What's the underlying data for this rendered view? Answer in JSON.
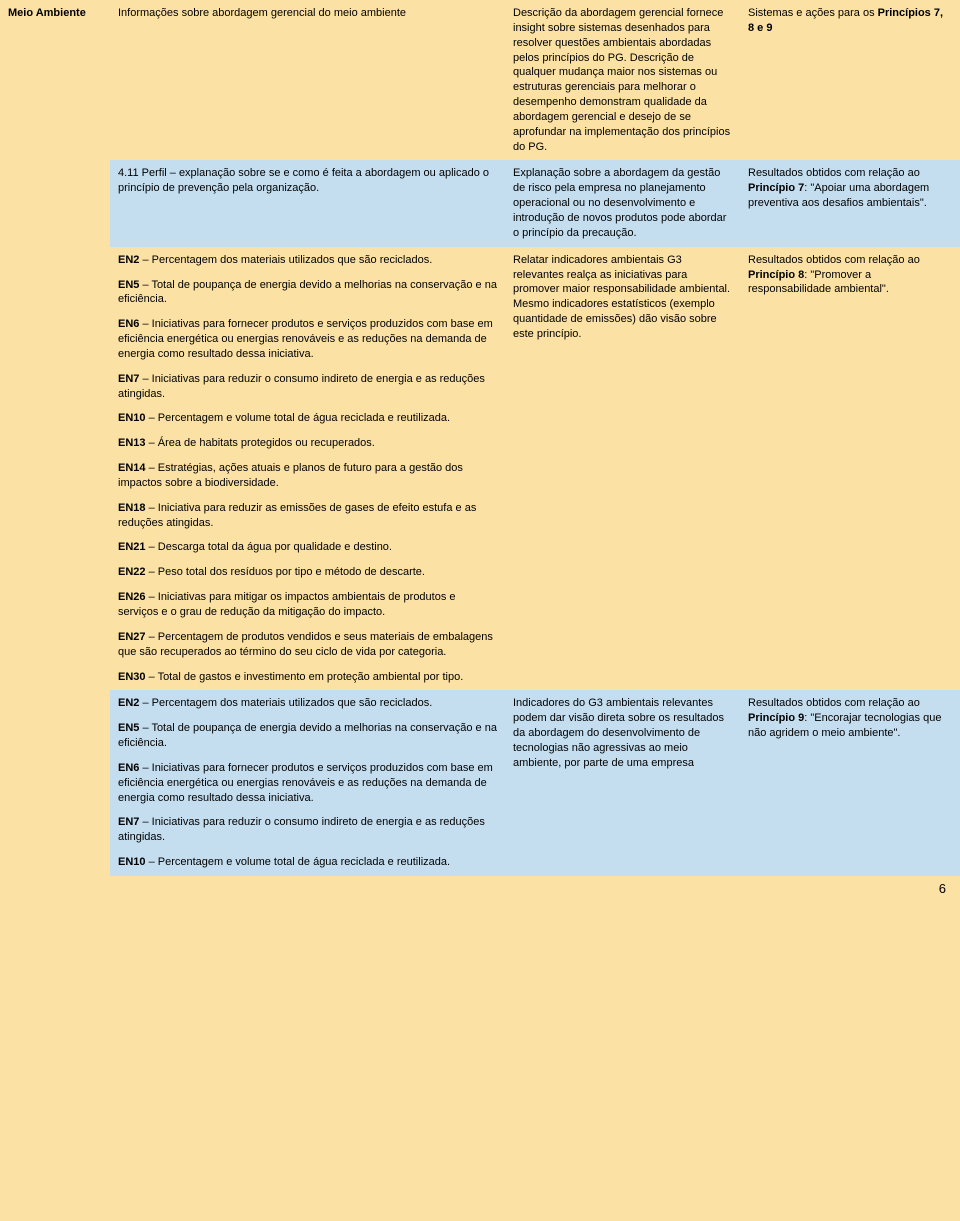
{
  "colors": {
    "page_bg": "#fbe1a4",
    "blue_row_bg": "#c4def0",
    "text": "#000000"
  },
  "page_number": "6",
  "rows": [
    {
      "type": "normal",
      "category": "Meio Ambiente",
      "col1": [
        {
          "text": "Informações sobre abordagem gerencial do meio ambiente"
        }
      ],
      "col2": [
        {
          "text": "Descrição da abordagem gerencial fornece insight sobre sistemas desenhados para resolver questões ambientais abordadas pelos princípios do PG. Descrição de qualquer mudança maior nos sistemas ou estruturas gerenciais para melhorar o desempenho demonstram qualidade da abordagem gerencial e desejo de se aprofundar na implementação dos princípios do PG."
        }
      ],
      "col3": [
        {
          "parts": [
            {
              "t": "Sistemas e ações para os "
            },
            {
              "t": "Princípios 7, 8 e 9",
              "bold": true
            }
          ]
        }
      ]
    },
    {
      "type": "blue",
      "col1": [
        {
          "text": "4.11 Perfil – explanação sobre se e como é feita a abordagem ou aplicado o princípio de prevenção pela organização."
        }
      ],
      "col2": [
        {
          "text": "Explanação sobre a abordagem da gestão de risco pela empresa no planejamento operacional ou no desenvolvimento e introdução de novos produtos pode abordar o princípio da precaução."
        }
      ],
      "col3": [
        {
          "parts": [
            {
              "t": "Resultados obtidos com relação ao "
            },
            {
              "t": "Princípio 7",
              "bold": true
            },
            {
              "t": ": \"Apoiar uma abordagem preventiva aos desafios ambientais\"."
            }
          ]
        }
      ]
    },
    {
      "type": "normal",
      "col1": [
        {
          "parts": [
            {
              "t": "EN2",
              "bold": true
            },
            {
              "t": " – Percentagem dos materiais utilizados que são reciclados."
            }
          ]
        },
        {
          "parts": [
            {
              "t": "EN5",
              "bold": true
            },
            {
              "t": " – Total de poupança de energia devido a melhorias na conservação e na eficiência."
            }
          ]
        },
        {
          "parts": [
            {
              "t": "EN6",
              "bold": true
            },
            {
              "t": " – Iniciativas para fornecer produtos e serviços produzidos com base em eficiência energética ou energias renováveis e as reduções na demanda de energia como resultado dessa iniciativa."
            }
          ]
        },
        {
          "parts": [
            {
              "t": "EN7",
              "bold": true
            },
            {
              "t": " – Iniciativas para reduzir o consumo indireto de energia e as reduções atingidas."
            }
          ]
        },
        {
          "parts": [
            {
              "t": "EN10",
              "bold": true
            },
            {
              "t": " – Percentagem e volume total de água reciclada e reutilizada."
            }
          ]
        },
        {
          "parts": [
            {
              "t": "EN13",
              "bold": true
            },
            {
              "t": " – Área de habitats protegidos ou recuperados."
            }
          ]
        },
        {
          "parts": [
            {
              "t": "EN14",
              "bold": true
            },
            {
              "t": " – Estratégias, ações atuais e planos de futuro para a gestão dos impactos sobre a biodiversidade."
            }
          ]
        },
        {
          "parts": [
            {
              "t": "EN18",
              "bold": true
            },
            {
              "t": " – Iniciativa para reduzir as emissões de gases de efeito estufa e as reduções atingidas."
            }
          ]
        },
        {
          "parts": [
            {
              "t": "EN21",
              "bold": true
            },
            {
              "t": " – Descarga total da água por qualidade e destino."
            }
          ]
        },
        {
          "parts": [
            {
              "t": "EN22",
              "bold": true
            },
            {
              "t": " – Peso total dos resíduos por tipo e método de descarte."
            }
          ]
        },
        {
          "parts": [
            {
              "t": "EN26",
              "bold": true
            },
            {
              "t": " – Iniciativas para mitigar os impactos ambientais de produtos e serviços e o grau de redução da mitigação do impacto."
            }
          ]
        },
        {
          "parts": [
            {
              "t": "EN27",
              "bold": true
            },
            {
              "t": " – Percentagem de produtos vendidos e seus materiais de embalagens que são recuperados ao término do seu ciclo de vida por categoria."
            }
          ]
        },
        {
          "parts": [
            {
              "t": "EN30",
              "bold": true
            },
            {
              "t": " – Total de gastos e investimento em proteção ambiental por tipo."
            }
          ]
        }
      ],
      "col2": [
        {
          "text": "Relatar indicadores ambientais G3 relevantes realça as iniciativas para promover maior responsabilidade ambiental. Mesmo indicadores estatísticos (exemplo quantidade de emissões) dão visão sobre este princípio."
        }
      ],
      "col3": [
        {
          "parts": [
            {
              "t": "Resultados obtidos com relação ao "
            },
            {
              "t": "Princípio 8",
              "bold": true
            },
            {
              "t": ": \"Promover a responsabilidade ambiental\"."
            }
          ]
        }
      ]
    },
    {
      "type": "blue",
      "col1": [
        {
          "parts": [
            {
              "t": "EN2",
              "bold": true
            },
            {
              "t": " – Percentagem dos materiais utilizados que são reciclados."
            }
          ]
        },
        {
          "parts": [
            {
              "t": "EN5",
              "bold": true
            },
            {
              "t": " – Total de poupança de energia devido a melhorias na conservação e na eficiência."
            }
          ]
        },
        {
          "parts": [
            {
              "t": "EN6",
              "bold": true
            },
            {
              "t": " – Iniciativas para fornecer produtos e serviços produzidos com base em eficiência energética ou energias renováveis e as reduções na demanda de energia como resultado dessa iniciativa."
            }
          ]
        },
        {
          "parts": [
            {
              "t": "EN7",
              "bold": true
            },
            {
              "t": " – Iniciativas para reduzir o consumo indireto de energia e as reduções atingidas."
            }
          ]
        },
        {
          "parts": [
            {
              "t": "EN10",
              "bold": true
            },
            {
              "t": " – Percentagem e volume total de água reciclada e reutilizada."
            }
          ]
        }
      ],
      "col2": [
        {
          "text": "Indicadores do G3 ambientais relevantes podem dar visão direta sobre os resultados da abordagem do desenvolvimento de tecnologias não agressivas ao meio ambiente, por parte de uma empresa"
        }
      ],
      "col3": [
        {
          "parts": [
            {
              "t": "Resultados obtidos com relação ao "
            },
            {
              "t": "Princípio 9",
              "bold": true
            },
            {
              "t": ": \"Encorajar tecnologias que não agridem o meio ambiente\"."
            }
          ]
        }
      ]
    }
  ]
}
